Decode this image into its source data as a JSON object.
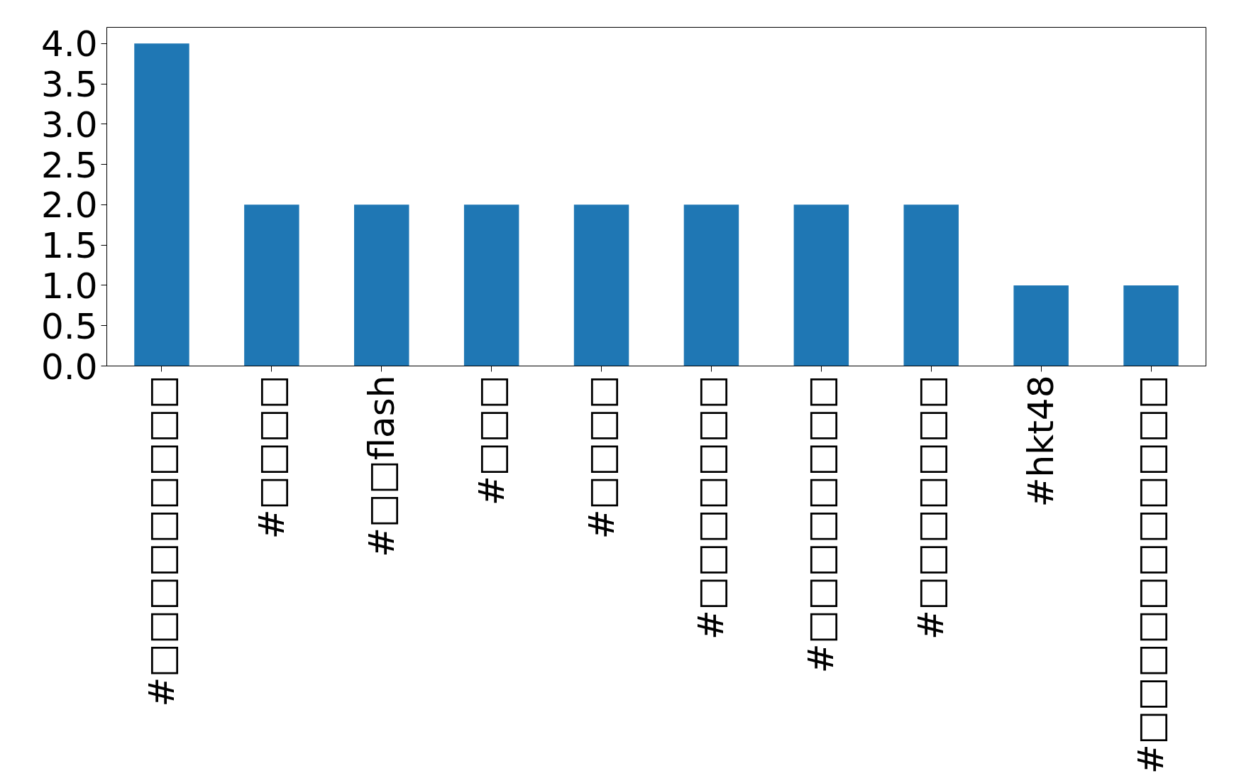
{
  "chart_data": {
    "type": "bar",
    "categories": [
      "#□□□□□□□□□",
      "#□□□□",
      "#□□flash",
      "#□□□",
      "#□□□□",
      "#□□□□□□□",
      "#□□□□□□□□",
      "#□□□□□□□",
      "#hkt48",
      "#□□□□□□□□□□□"
    ],
    "values": [
      4,
      2,
      2,
      2,
      2,
      2,
      2,
      2,
      1,
      1
    ],
    "color": "#1f77b4",
    "ylim": [
      0,
      4.2
    ],
    "yticks": [
      {
        "value": 0,
        "label": "0.0"
      },
      {
        "value": 0.5,
        "label": "0.5"
      },
      {
        "value": 1,
        "label": "1.0"
      },
      {
        "value": 1.5,
        "label": "1.5"
      },
      {
        "value": 2,
        "label": "2.0"
      },
      {
        "value": 2.5,
        "label": "2.5"
      },
      {
        "value": 3,
        "label": "3.0"
      },
      {
        "value": 3.5,
        "label": "3.5"
      },
      {
        "value": 4,
        "label": "4.0"
      }
    ],
    "grid": false
  }
}
